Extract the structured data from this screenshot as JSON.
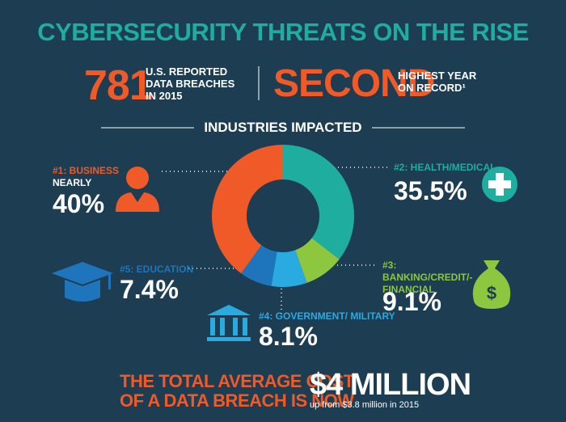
{
  "title": "CYBERSECURITY THREATS ON THE RISE",
  "stats": [
    {
      "number": 781,
      "lines": [
        "U.S. REPORTED",
        "DATA BREACHES",
        "IN 2015"
      ]
    },
    {
      "number": "SECOND",
      "lines": [
        "HIGHEST YEAR",
        "ON RECORD¹"
      ]
    }
  ],
  "chart_data": {
    "type": "donut",
    "title": "INDUSTRIES IMPACTED",
    "categories": [
      "#1: BUSINESS",
      "#2: HEALTH/MEDICAL",
      "#3: BANKING/CREDIT/- FINANCIAL",
      "#4: GOVERNMENT/ MILITARY",
      "#5: EDUCATION"
    ],
    "values": [
      40,
      35.5,
      9.1,
      8.1,
      7.4
    ],
    "value_labels": [
      "40%",
      "35.5%",
      "9.1%",
      "8.1%",
      "7.4%"
    ],
    "colors": [
      "#f05a28",
      "#1fada0",
      "#8dc63f",
      "#29aae1",
      "#1f75bc"
    ],
    "annotations": [
      "NEARLY"
    ]
  },
  "footer": {
    "lines": [
      "THE TOTAL AVERAGE COST",
      "OF A DATA BREACH IS NOW"
    ],
    "amount": "$4 MILLION",
    "note": "up from $3.8 million in 2015"
  }
}
